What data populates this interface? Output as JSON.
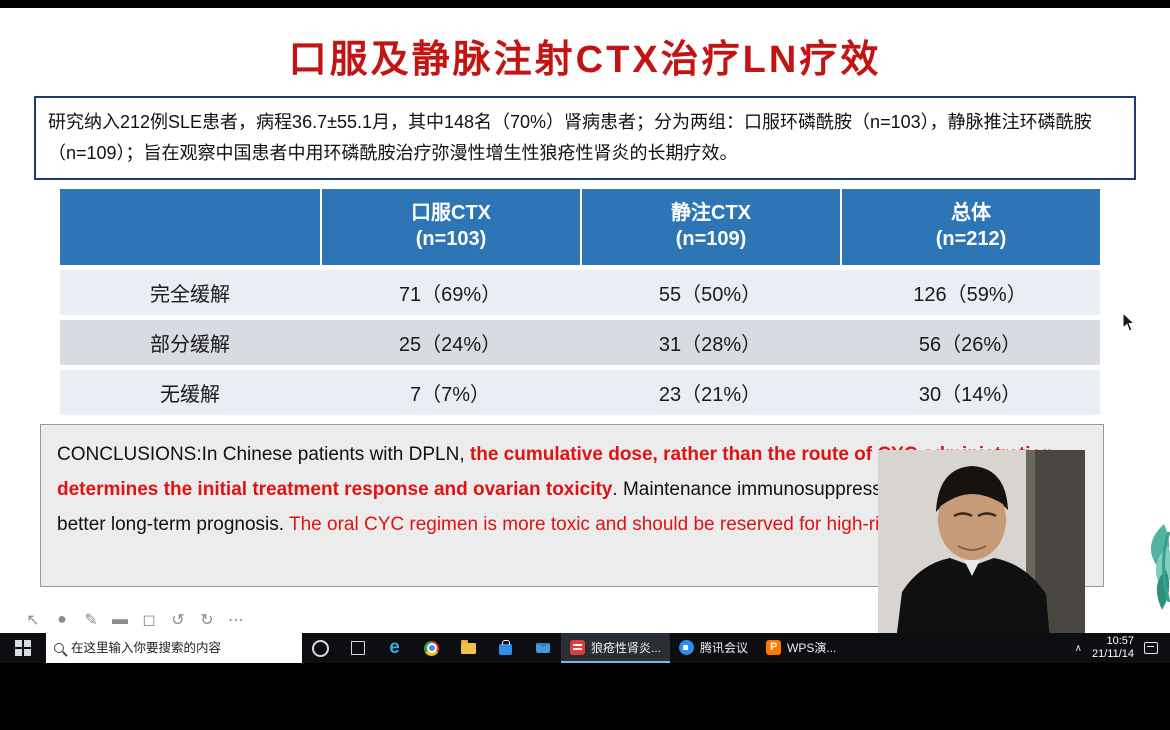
{
  "slide": {
    "title": "口服及静脉注射CTX治疗LN疗效",
    "summary_box": "研究纳入212例SLE患者，病程36.7±55.1月，其中148名（70%）肾病患者；分为两组：口服环磷酰胺（n=103），静脉推注环磷酰胺（n=109）；旨在观察中国患者中用环磷酰胺治疗弥漫性增生性狼疮性肾炎的长期疗效。",
    "table": {
      "headers": [
        "",
        "口服CTX\n(n=103)",
        "静注CTX\n(n=109)",
        "总体\n(n=212)"
      ],
      "rows": [
        [
          "完全缓解",
          "71（69%）",
          "55（50%）",
          "126（59%）"
        ],
        [
          "部分缓解",
          "25（24%）",
          "31（28%）",
          "56（26%）"
        ],
        [
          "无缓解",
          "7（7%）",
          "23（21%）",
          "30（14%）"
        ]
      ]
    },
    "conclusions_segments": [
      {
        "text": "CONCLUSIONS:In Chinese patients with DPLN, ",
        "style": "black"
      },
      {
        "text": "the cumulative dose, rather than the route of CYC administration, determines the initial treatment response and ovarian toxicity",
        "style": "red-bold"
      },
      {
        "text": ". Maintenance immunosuppression is associated with a better long-term prognosis. ",
        "style": "black"
      },
      {
        "text": "The oral CYC regimen is more toxic and should be reserved for high-risk patients.",
        "style": "red"
      }
    ],
    "annotation_tools": [
      "pointer",
      "laser",
      "pen",
      "highlighter",
      "eraser",
      "undo",
      "redo",
      "more"
    ]
  },
  "taskbar": {
    "search_placeholder": "在这里输入你要搜索的内容",
    "quick_icons": [
      "cortana",
      "taskview",
      "edge",
      "chrome",
      "explorer",
      "store",
      "mail"
    ],
    "apps": [
      {
        "label": "狼疮性肾炎...",
        "icon": "wps-doc",
        "active": true
      },
      {
        "label": "腾讯会议",
        "icon": "tencent-meeting",
        "active": false
      },
      {
        "label": "WPS演...",
        "icon": "wps-presentation",
        "active": false
      }
    ],
    "tray": {
      "time": "10:57",
      "date": "21/11/14"
    }
  },
  "colors": {
    "title_red": "#c31414",
    "table_header_blue": "#2e75b6",
    "conclusion_red": "#e01212",
    "info_border_navy": "#1e3a6e"
  }
}
